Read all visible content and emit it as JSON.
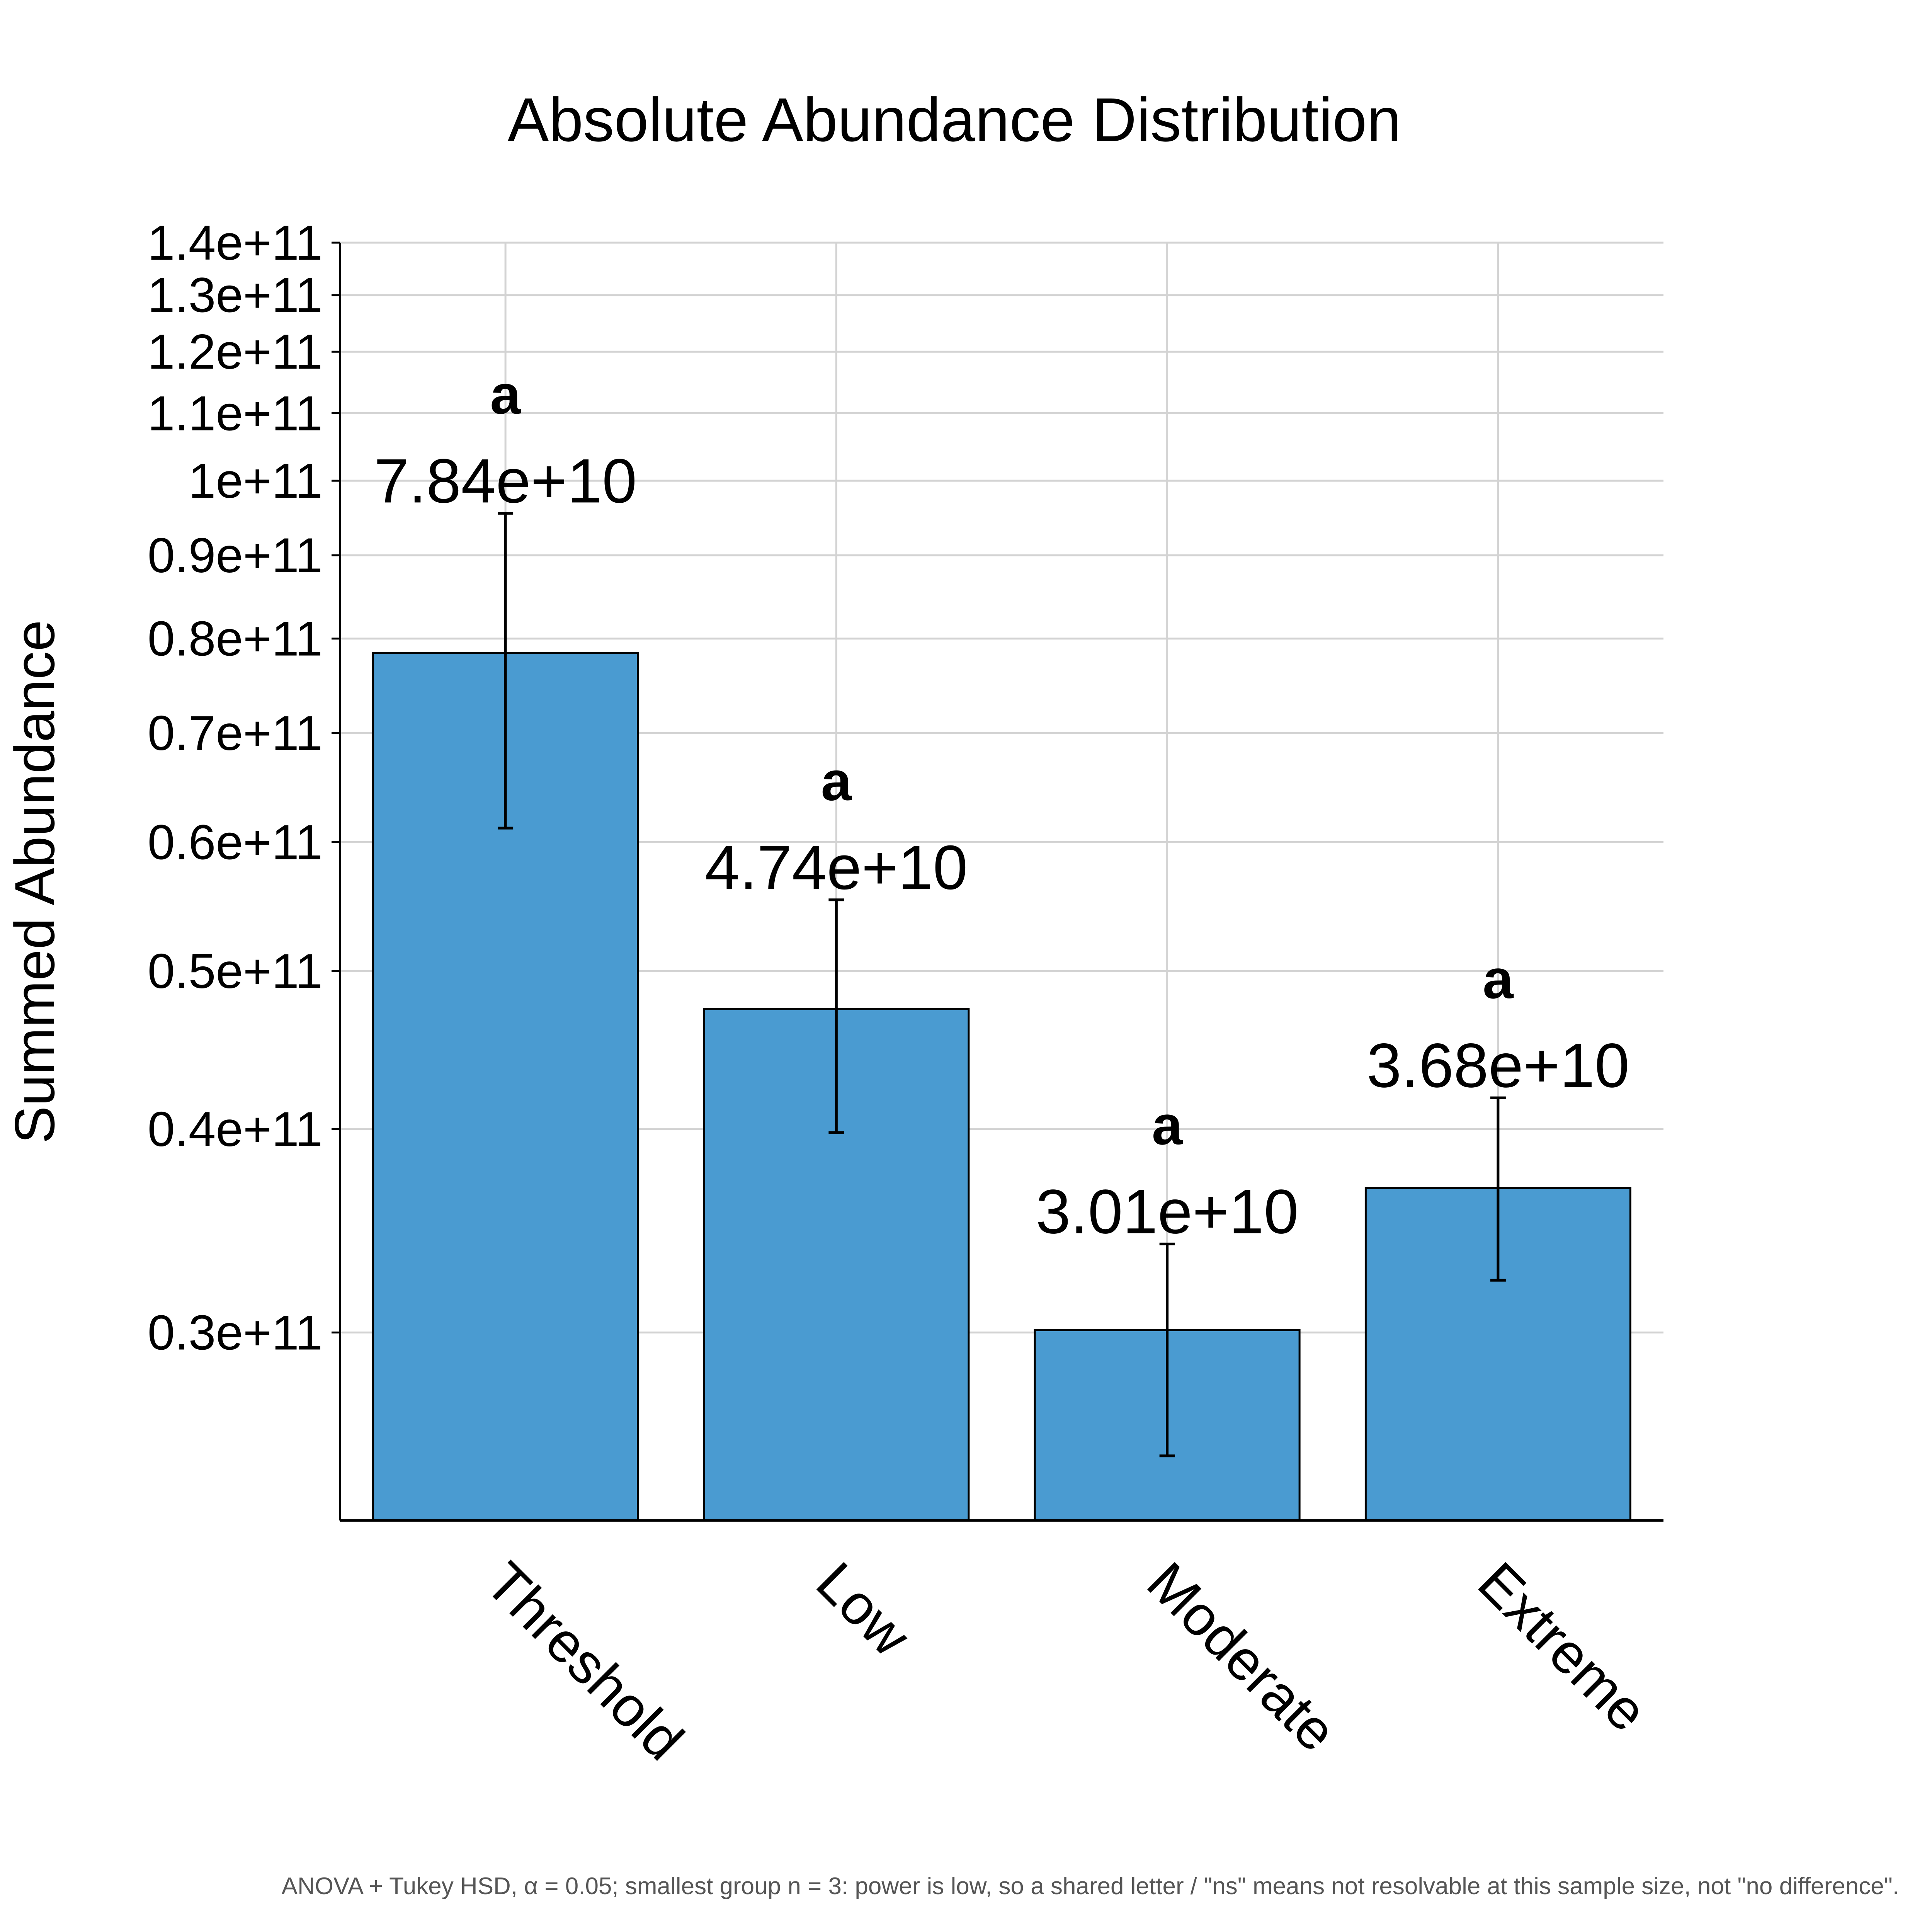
{
  "chart_data": {
    "type": "bar",
    "title": "Absolute Abundance Distribution",
    "xlabel": "",
    "ylabel": "Summed Abundance",
    "yscale": "log",
    "ylim": [
      23000000000,
      140000000000
    ],
    "yticks": [
      30000000000,
      40000000000,
      50000000000,
      60000000000,
      70000000000,
      80000000000,
      90000000000,
      100000000000,
      110000000000,
      120000000000,
      130000000000,
      140000000000
    ],
    "ytick_labels": [
      "0.3e+11",
      "0.4e+11",
      "0.5e+11",
      "0.6e+11",
      "0.7e+11",
      "0.8e+11",
      "0.9e+11",
      "1e+11",
      "1.1e+11",
      "1.2e+11",
      "1.3e+11",
      "1.4e+11"
    ],
    "categories": [
      "Threshold",
      "Low",
      "Moderate",
      "Extreme"
    ],
    "values": [
      78400000000,
      47400000000,
      30100000000,
      36800000000
    ],
    "value_labels": [
      "7.84e+10",
      "4.74e+10",
      "3.01e+10",
      "3.68e+10"
    ],
    "error_low": [
      61200000000,
      39800000000,
      25200000000,
      32300000000
    ],
    "error_high": [
      95500000000,
      55300000000,
      34000000000,
      41800000000
    ],
    "significance_letters": [
      "a",
      "a",
      "a",
      "a"
    ],
    "grid": true,
    "legend": "none",
    "bar_color": "#4a9bd1",
    "bar_edge_color": "#000000",
    "grid_color": "#d3d3d3",
    "footnote": "ANOVA + Tukey HSD, α = 0.05; smallest group n = 3: power is low, so a shared letter / \"ns\" means not resolvable at this sample size, not \"no difference\"."
  }
}
